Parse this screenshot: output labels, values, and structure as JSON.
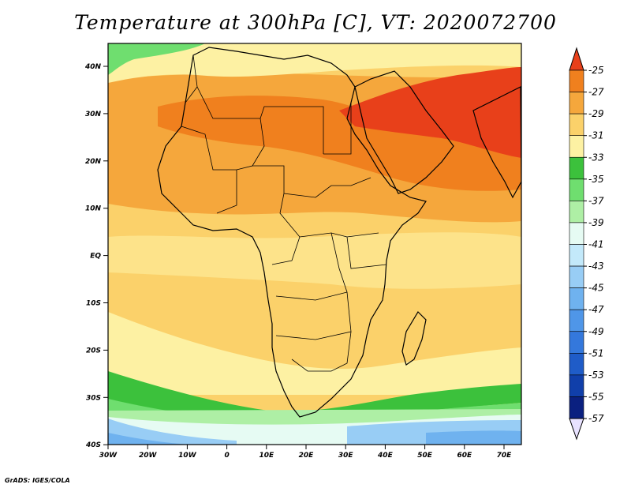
{
  "title": "Temperature at 300hPa [C], VT: 2020072700",
  "credit": "GrADS: IGES/COLA",
  "lat_ticks": [
    "40N",
    "30N",
    "20N",
    "10N",
    "EQ",
    "10S",
    "20S",
    "30S",
    "40S"
  ],
  "lon_ticks": [
    "30W",
    "20W",
    "10W",
    "0",
    "10E",
    "20E",
    "30E",
    "40E",
    "50E",
    "60E",
    "70E"
  ],
  "colorbar": {
    "labels": [
      "-25",
      "-27",
      "-29",
      "-31",
      "-33",
      "-35",
      "-37",
      "-39",
      "-41",
      "-43",
      "-45",
      "-47",
      "-49",
      "-51",
      "-53",
      "-55",
      "-57"
    ],
    "colors": [
      "#e8401a",
      "#f0801e",
      "#f5a73c",
      "#fbd16a",
      "#fdf1a3",
      "#3cc13c",
      "#6fde6f",
      "#aeefa5",
      "#e6fbf3",
      "#c3e9fa",
      "#98cdf5",
      "#6fb2ef",
      "#4f96e8",
      "#3478dc",
      "#1f5cc8",
      "#103faa",
      "#0a2080"
    ],
    "top_color": "#e8401a",
    "bottom_color": "#e8e2ff"
  }
}
